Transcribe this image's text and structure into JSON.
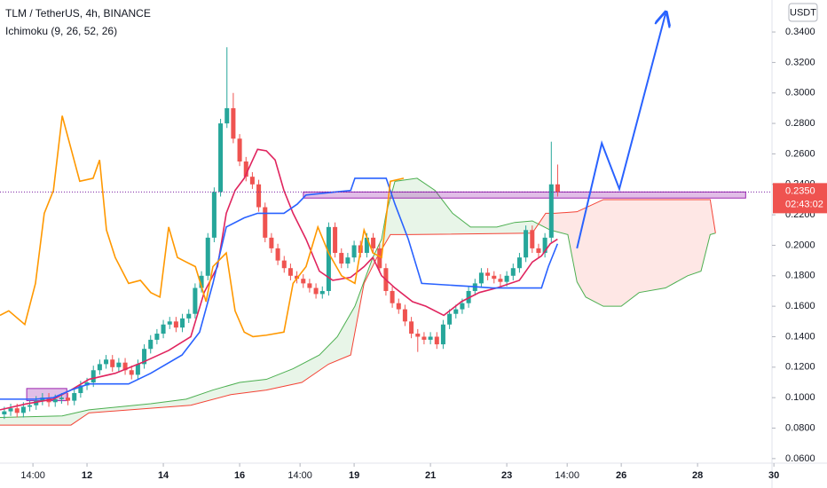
{
  "chart_data": {
    "type": "candlestick",
    "title": "TLM / TetherUS, 4h, BINANCE",
    "indicator": "Ichimoku (9, 26, 52, 26)",
    "y_axis_unit": "USDT",
    "up_color": "#26a69a",
    "down_color": "#ef5350",
    "grid": false,
    "xlim": [
      9.72,
      29.95
    ],
    "ylim": [
      0.057,
      0.361
    ],
    "xticks": [
      {
        "value": 10.583,
        "label": "14:00"
      },
      12,
      14,
      16,
      {
        "value": 17.583,
        "label": "14:00"
      },
      19,
      21,
      23,
      {
        "value": 24.583,
        "label": "14:00"
      },
      26,
      28,
      30
    ],
    "yticks": [
      {
        "value": 0.06,
        "label": "0.0600"
      },
      {
        "value": 0.08,
        "label": "0.0800"
      },
      {
        "value": 0.1,
        "label": "0.1000"
      },
      {
        "value": 0.12,
        "label": "0.1200"
      },
      {
        "value": 0.14,
        "label": "0.1400"
      },
      {
        "value": 0.16,
        "label": "0.1600"
      },
      {
        "value": 0.18,
        "label": "0.1800"
      },
      {
        "value": 0.2,
        "label": "0.2000"
      },
      {
        "value": 0.22,
        "label": "0.2200"
      },
      {
        "value": 0.24,
        "label": "0.2400"
      },
      {
        "value": 0.26,
        "label": "0.2600"
      },
      {
        "value": 0.28,
        "label": "0.2800"
      },
      {
        "value": 0.3,
        "label": "0.3000"
      },
      {
        "value": 0.32,
        "label": "0.3200"
      },
      {
        "value": 0.34,
        "label": "0.3400"
      }
    ],
    "x": [
      9.833,
      10,
      10.167,
      10.333,
      10.5,
      10.667,
      10.833,
      11,
      11.167,
      11.333,
      11.5,
      11.667,
      11.833,
      12,
      12.167,
      12.333,
      12.5,
      12.667,
      12.833,
      13,
      13.167,
      13.333,
      13.5,
      13.667,
      13.833,
      14,
      14.167,
      14.333,
      14.5,
      14.667,
      14.833,
      15,
      15.167,
      15.333,
      15.5,
      15.667,
      15.833,
      16,
      16.167,
      16.333,
      16.5,
      16.667,
      16.833,
      17,
      17.167,
      17.333,
      17.5,
      17.667,
      17.833,
      18,
      18.167,
      18.333,
      18.5,
      18.667,
      18.833,
      19,
      19.167,
      19.333,
      19.5,
      19.667,
      19.833,
      20,
      20.167,
      20.333,
      20.5,
      20.667,
      20.833,
      21,
      21.167,
      21.333,
      21.5,
      21.667,
      21.833,
      22,
      22.167,
      22.333,
      22.5,
      22.667,
      22.833,
      23,
      23.167,
      23.333,
      23.5,
      23.667,
      23.833,
      24,
      24.167,
      24.333
    ],
    "open": [
      0.089,
      0.091,
      0.093,
      0.09,
      0.094,
      0.095,
      0.098,
      0.1,
      0.097,
      0.099,
      0.1,
      0.098,
      0.103,
      0.108,
      0.11,
      0.118,
      0.122,
      0.125,
      0.12,
      0.123,
      0.118,
      0.115,
      0.122,
      0.132,
      0.138,
      0.142,
      0.148,
      0.15,
      0.146,
      0.152,
      0.155,
      0.172,
      0.18,
      0.205,
      0.235,
      0.28,
      0.29,
      0.27,
      0.255,
      0.245,
      0.24,
      0.225,
      0.205,
      0.198,
      0.19,
      0.185,
      0.18,
      0.178,
      0.175,
      0.172,
      0.168,
      0.17,
      0.212,
      0.195,
      0.188,
      0.192,
      0.2,
      0.195,
      0.205,
      0.198,
      0.185,
      0.17,
      0.162,
      0.158,
      0.15,
      0.142,
      0.14,
      0.138,
      0.14,
      0.135,
      0.148,
      0.155,
      0.158,
      0.162,
      0.17,
      0.175,
      0.182,
      0.18,
      0.178,
      0.176,
      0.18,
      0.185,
      0.192,
      0.21,
      0.198,
      0.195,
      0.205,
      0.24
    ],
    "high": [
      0.094,
      0.096,
      0.096,
      0.097,
      0.098,
      0.101,
      0.103,
      0.103,
      0.102,
      0.103,
      0.103,
      0.106,
      0.111,
      0.113,
      0.121,
      0.125,
      0.128,
      0.128,
      0.126,
      0.126,
      0.121,
      0.125,
      0.135,
      0.141,
      0.145,
      0.151,
      0.153,
      0.153,
      0.155,
      0.158,
      0.175,
      0.183,
      0.208,
      0.238,
      0.283,
      0.33,
      0.3,
      0.273,
      0.258,
      0.248,
      0.243,
      0.228,
      0.208,
      0.201,
      0.193,
      0.188,
      0.183,
      0.181,
      0.178,
      0.175,
      0.173,
      0.215,
      0.215,
      0.198,
      0.195,
      0.203,
      0.203,
      0.208,
      0.208,
      0.201,
      0.188,
      0.173,
      0.165,
      0.161,
      0.153,
      0.145,
      0.143,
      0.143,
      0.143,
      0.151,
      0.158,
      0.161,
      0.165,
      0.173,
      0.178,
      0.185,
      0.185,
      0.183,
      0.181,
      0.183,
      0.188,
      0.195,
      0.213,
      0.213,
      0.201,
      0.208,
      0.268,
      0.253
    ],
    "low": [
      0.086,
      0.088,
      0.087,
      0.087,
      0.091,
      0.092,
      0.095,
      0.094,
      0.094,
      0.096,
      0.095,
      0.095,
      0.1,
      0.105,
      0.107,
      0.115,
      0.119,
      0.117,
      0.117,
      0.115,
      0.112,
      0.112,
      0.119,
      0.129,
      0.135,
      0.139,
      0.145,
      0.143,
      0.143,
      0.149,
      0.152,
      0.169,
      0.177,
      0.202,
      0.232,
      0.277,
      0.267,
      0.252,
      0.242,
      0.237,
      0.222,
      0.202,
      0.195,
      0.187,
      0.182,
      0.177,
      0.175,
      0.172,
      0.169,
      0.165,
      0.165,
      0.167,
      0.192,
      0.185,
      0.185,
      0.189,
      0.192,
      0.192,
      0.195,
      0.182,
      0.167,
      0.159,
      0.155,
      0.147,
      0.139,
      0.13,
      0.135,
      0.135,
      0.132,
      0.132,
      0.145,
      0.152,
      0.155,
      0.159,
      0.167,
      0.172,
      0.177,
      0.175,
      0.173,
      0.173,
      0.177,
      0.182,
      0.189,
      0.195,
      0.192,
      0.192,
      0.202,
      0.232
    ],
    "close": [
      0.091,
      0.093,
      0.09,
      0.094,
      0.095,
      0.098,
      0.1,
      0.097,
      0.099,
      0.1,
      0.098,
      0.103,
      0.108,
      0.11,
      0.118,
      0.122,
      0.125,
      0.12,
      0.123,
      0.118,
      0.115,
      0.122,
      0.132,
      0.138,
      0.142,
      0.148,
      0.15,
      0.146,
      0.152,
      0.155,
      0.172,
      0.18,
      0.205,
      0.235,
      0.28,
      0.29,
      0.27,
      0.255,
      0.245,
      0.24,
      0.225,
      0.205,
      0.198,
      0.19,
      0.185,
      0.18,
      0.178,
      0.175,
      0.172,
      0.168,
      0.17,
      0.212,
      0.195,
      0.188,
      0.192,
      0.2,
      0.195,
      0.205,
      0.198,
      0.185,
      0.17,
      0.162,
      0.158,
      0.15,
      0.142,
      0.14,
      0.138,
      0.14,
      0.135,
      0.148,
      0.155,
      0.158,
      0.162,
      0.17,
      0.175,
      0.182,
      0.18,
      0.178,
      0.176,
      0.18,
      0.185,
      0.192,
      0.21,
      0.198,
      0.195,
      0.205,
      0.24,
      0.235
    ],
    "lines": [
      {
        "color": "#e0245e",
        "x": [
          9.72,
          10.42,
          11.12,
          11.58,
          12.05,
          12.74,
          13.44,
          14.14,
          14.72,
          15.07,
          15.42,
          15.65,
          15.88,
          16.12,
          16.47,
          16.7,
          16.93,
          17.16,
          17.4,
          17.74,
          18.09,
          18.44,
          18.91,
          19.26,
          19.49,
          19.72,
          20.07,
          20.53,
          20.88,
          21.35,
          21.81,
          22.28,
          22.74,
          23.33,
          23.67,
          23.91,
          24.14,
          24.33
        ],
        "values": [
          0.092,
          0.096,
          0.099,
          0.105,
          0.112,
          0.116,
          0.123,
          0.131,
          0.14,
          0.169,
          0.186,
          0.221,
          0.236,
          0.244,
          0.263,
          0.262,
          0.256,
          0.236,
          0.221,
          0.204,
          0.183,
          0.177,
          0.179,
          0.186,
          0.192,
          0.18,
          0.172,
          0.163,
          0.16,
          0.154,
          0.163,
          0.169,
          0.172,
          0.177,
          0.189,
          0.193,
          0.201,
          0.204
        ]
      },
      {
        "color": "#2962ff",
        "x": [
          9.72,
          10.65,
          11.12,
          11.58,
          12.05,
          13.09,
          13.67,
          14.49,
          14.95,
          15.3,
          15.65,
          16.12,
          16.47,
          17.16,
          17.51,
          17.74,
          18.91,
          19.02,
          19.84,
          20.07,
          20.42,
          20.77,
          22.05,
          22.63,
          23.91,
          24.09,
          24.33
        ],
        "values": [
          0.099,
          0.099,
          0.1,
          0.105,
          0.109,
          0.109,
          0.116,
          0.128,
          0.143,
          0.175,
          0.212,
          0.218,
          0.221,
          0.221,
          0.227,
          0.233,
          0.236,
          0.244,
          0.244,
          0.227,
          0.204,
          0.175,
          0.173,
          0.172,
          0.172,
          0.186,
          0.201
        ]
      },
      {
        "color": "#ff9800",
        "x": [
          9.72,
          9.95,
          10.37,
          10.65,
          10.88,
          11.12,
          11.35,
          11.81,
          12.16,
          12.33,
          12.51,
          12.74,
          13.09,
          13.4,
          13.67,
          13.91,
          14.14,
          14.37,
          14.6,
          14.84,
          15.12,
          15.3,
          15.65,
          15.88,
          16.12,
          16.35,
          16.7,
          17.16,
          17.4,
          17.74,
          18.05,
          18.33,
          18.67,
          19.02,
          19.26,
          19.49,
          19.72,
          19.95,
          20.3
        ],
        "values": [
          0.154,
          0.157,
          0.148,
          0.175,
          0.221,
          0.236,
          0.285,
          0.242,
          0.244,
          0.256,
          0.21,
          0.192,
          0.175,
          0.177,
          0.169,
          0.166,
          0.212,
          0.192,
          0.189,
          0.186,
          0.163,
          0.186,
          0.195,
          0.157,
          0.143,
          0.14,
          0.141,
          0.143,
          0.175,
          0.186,
          0.212,
          0.195,
          0.18,
          0.175,
          0.21,
          0.195,
          0.192,
          0.242,
          0.244
        ]
      }
    ],
    "cloud": {
      "fill_up": "rgba(76,175,80,0.13)",
      "fill_down": "rgba(244,67,54,0.13)",
      "a": {
        "color": "#4caf50",
        "x": [
          9.72,
          11.35,
          12.05,
          13.67,
          14.6,
          15.3,
          16.0,
          16.7,
          17.4,
          18.09,
          18.56,
          19.02,
          19.49,
          19.72,
          19.84,
          20.07,
          20.65,
          21.12,
          21.58,
          22.05,
          22.74,
          23.21,
          23.67,
          24.14,
          24.6,
          24.84,
          25.07,
          25.53,
          26.0,
          26.47,
          27.16,
          27.74,
          28.09,
          28.33,
          28.47
        ],
        "values": [
          0.087,
          0.088,
          0.092,
          0.096,
          0.099,
          0.105,
          0.11,
          0.112,
          0.119,
          0.128,
          0.14,
          0.16,
          0.192,
          0.204,
          0.221,
          0.242,
          0.244,
          0.236,
          0.221,
          0.212,
          0.212,
          0.215,
          0.216,
          0.21,
          0.207,
          0.176,
          0.166,
          0.16,
          0.16,
          0.169,
          0.172,
          0.18,
          0.183,
          0.207,
          0.208
        ]
      },
      "b": {
        "color": "#f44336",
        "x": [
          9.72,
          11.58,
          12.05,
          13.67,
          14.72,
          15.77,
          16.7,
          17.63,
          18.33,
          18.91,
          19.26,
          19.6,
          19.95,
          20.42,
          23.67,
          24.02,
          24.26,
          24.84,
          25.53,
          26.0,
          28.33,
          28.47
        ],
        "values": [
          0.082,
          0.082,
          0.09,
          0.093,
          0.095,
          0.102,
          0.105,
          0.11,
          0.122,
          0.128,
          0.175,
          0.192,
          0.207,
          0.207,
          0.208,
          0.221,
          0.221,
          0.222,
          0.23,
          0.23,
          0.23,
          0.208
        ]
      }
    },
    "arrow": {
      "color": "#2962ff",
      "x": [
        24.84,
        25.49,
        25.95,
        27.16
      ],
      "values": [
        0.198,
        0.267,
        0.237,
        0.352
      ]
    },
    "boxes": [
      {
        "color": "#9c27b0",
        "fill": "rgba(156,39,176,0.3)",
        "xlim": [
          17.67,
          29.26
        ],
        "ylim": [
          0.231,
          0.235
        ]
      },
      {
        "color": "#9c27b0",
        "fill": "rgba(156,39,176,0.3)",
        "xlim": [
          10.42,
          11.47
        ],
        "ylim": [
          0.098,
          0.106
        ]
      }
    ],
    "last_price": {
      "value": 0.235,
      "label": "0.2350",
      "countdown": "02:43:02",
      "color": "#ef5350",
      "line_color": "#7b1fa2"
    }
  }
}
